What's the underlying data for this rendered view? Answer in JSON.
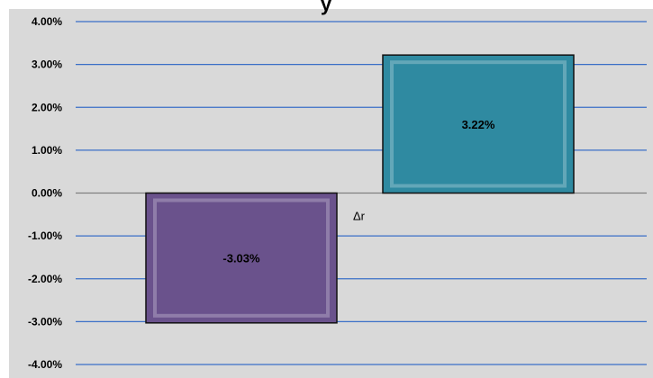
{
  "chart_data": {
    "type": "bar",
    "title": "y",
    "categories": [
      "",
      ""
    ],
    "series": [
      {
        "values": [
          -3.03,
          3.22
        ],
        "colors": [
          "#6a528c",
          "#2f8aa1"
        ]
      }
    ],
    "data_labels": [
      "-3.03%",
      "3.22%"
    ],
    "ylim": [
      -4,
      4
    ],
    "yticks": [
      4,
      3,
      2,
      1,
      0,
      -1,
      -2,
      -3,
      -4
    ],
    "ytick_labels": [
      "4.00%",
      "3.00%",
      "2.00%",
      "1.00%",
      "0.00%",
      "-1.00%",
      "-2.00%",
      "-3.00%",
      "-4.00%"
    ],
    "annotation": "Δr",
    "grid": true,
    "legend": "none",
    "colors": {
      "plot_background": "#d9d9d9",
      "gridline": "#3a6fc7",
      "zero_line": "#7f7f7f",
      "negative_bar": "#6a528c",
      "positive_bar": "#2f8aa1"
    }
  }
}
